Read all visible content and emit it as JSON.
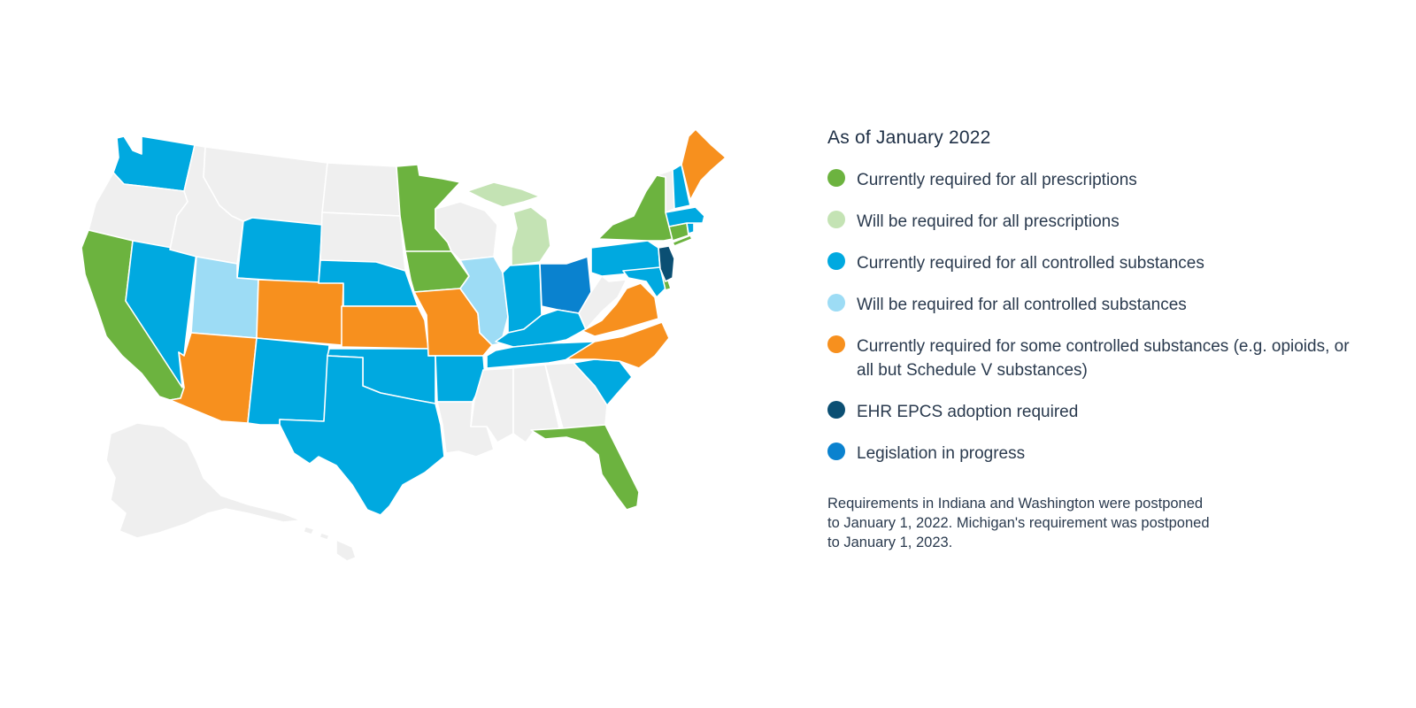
{
  "legend": {
    "title": "As of January 2022",
    "items": [
      {
        "label": "Currently required for all prescriptions",
        "color": "#6cb33f"
      },
      {
        "label": "Will be required for all prescriptions",
        "color": "#c4e3b4"
      },
      {
        "label": "Currently required for all controlled substances",
        "color": "#00a9e0"
      },
      {
        "label": "Will be required for all controlled substances",
        "color": "#9ddcf5"
      },
      {
        "label": "Currently required for some controlled substances (e.g. opioids, or all but Schedule V substances)",
        "color": "#f7901e"
      },
      {
        "label": "EHR EPCS adoption required",
        "color": "#0b4f73"
      },
      {
        "label": "Legislation in progress",
        "color": "#0a82cf"
      }
    ]
  },
  "note": "Requirements in Indiana and Washington were postponed to January 1, 2022. Michigan's requirement was postponed to January 1, 2023.",
  "map": {
    "no_requirement_color": "#efefef",
    "states": {
      "currently_required_all_prescriptions": [
        "CA",
        "MN",
        "IA",
        "NY",
        "FL",
        "DE",
        "CT"
      ],
      "will_be_required_all_prescriptions": [
        "MI"
      ],
      "currently_required_all_controlled_substances": [
        "WA",
        "NV",
        "WY",
        "NE",
        "NM",
        "TX",
        "OK",
        "AR",
        "IN",
        "KY",
        "TN",
        "PA",
        "SC",
        "NH",
        "MA",
        "RI",
        "MD"
      ],
      "will_be_required_all_controlled_substances": [
        "UT",
        "IL"
      ],
      "currently_required_some_controlled_substances": [
        "AZ",
        "CO",
        "KS",
        "MO",
        "VA",
        "NC",
        "ME"
      ],
      "ehr_epcs_adoption_required": [
        "NJ"
      ],
      "legislation_in_progress": [
        "OH"
      ]
    }
  }
}
